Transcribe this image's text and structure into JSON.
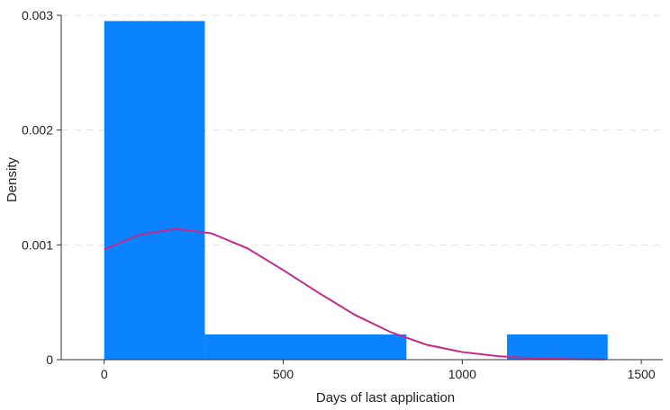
{
  "chart_data": {
    "type": "bar",
    "xlabel": "Days of last application",
    "ylabel": "Density",
    "xlim": [
      -120,
      1560
    ],
    "ylim": [
      0,
      0.003
    ],
    "x_ticks": [
      0,
      500,
      1000,
      1500
    ],
    "y_ticks": [
      0,
      0.001,
      0.002,
      0.003
    ],
    "x_tick_labels": [
      "0",
      "500",
      "1000",
      "1500"
    ],
    "y_tick_labels": [
      "0",
      "0.001",
      "0.002",
      "0.003"
    ],
    "grid": true,
    "histogram_bins": [
      {
        "x0": 0,
        "x1": 281,
        "density": 0.00295
      },
      {
        "x0": 281,
        "x1": 844,
        "density": 0.00022
      },
      {
        "x0": 1125,
        "x1": 1406,
        "density": 0.00022
      }
    ],
    "density_curve": {
      "type": "line",
      "x": [
        0,
        100,
        200,
        300,
        400,
        500,
        600,
        700,
        800,
        900,
        1000,
        1100,
        1200,
        1300,
        1400
      ],
      "y": [
        0.00096,
        0.00109,
        0.00114,
        0.0011,
        0.00097,
        0.00078,
        0.00058,
        0.00039,
        0.00024,
        0.00013,
        6.6e-05,
        3e-05,
        1.2e-05,
        4.5e-06,
        1.5e-06
      ]
    },
    "colors": {
      "bars": "#0b83ff",
      "curve": "#c32a8a",
      "axis": "#333333",
      "grid": "#e3e3e3"
    }
  }
}
